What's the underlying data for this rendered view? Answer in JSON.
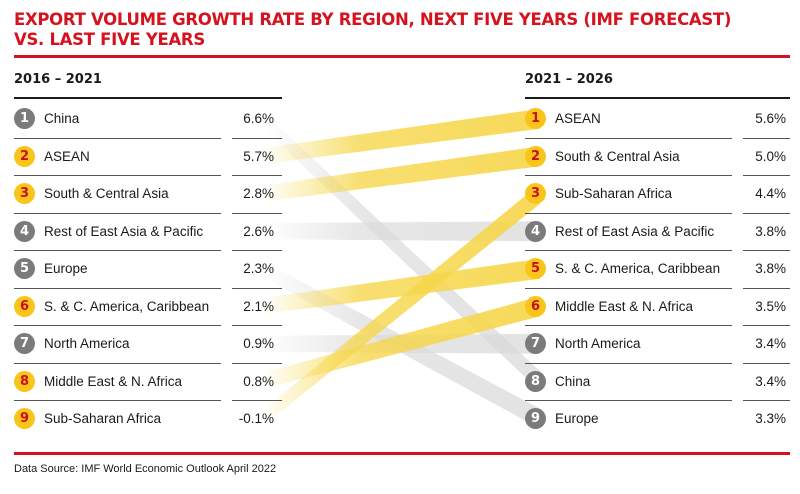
{
  "chart_data": {
    "type": "slope",
    "title": "EXPORT VOLUME GROWTH RATE BY REGION, NEXT FIVE YEARS (IMF FORECAST) VS. LAST FIVE YEARS",
    "left": {
      "period": "2016 – 2021",
      "rows": [
        {
          "rank": 1,
          "region": "China",
          "value": "6.6%",
          "highlight": false
        },
        {
          "rank": 2,
          "region": "ASEAN",
          "value": "5.7%",
          "highlight": true
        },
        {
          "rank": 3,
          "region": "South & Central Asia",
          "value": "2.8%",
          "highlight": true
        },
        {
          "rank": 4,
          "region": "Rest of East Asia & Pacific",
          "value": "2.6%",
          "highlight": false
        },
        {
          "rank": 5,
          "region": "Europe",
          "value": "2.3%",
          "highlight": false
        },
        {
          "rank": 6,
          "region": "S. & C. America, Caribbean",
          "value": "2.1%",
          "highlight": true
        },
        {
          "rank": 7,
          "region": "North America",
          "value": "0.9%",
          "highlight": false
        },
        {
          "rank": 8,
          "region": "Middle East & N. Africa",
          "value": "0.8%",
          "highlight": true
        },
        {
          "rank": 9,
          "region": "Sub-Saharan Africa",
          "value": "-0.1%",
          "highlight": true
        }
      ]
    },
    "right": {
      "period": "2021 – 2026",
      "rows": [
        {
          "rank": 1,
          "region": "ASEAN",
          "value": "5.6%",
          "highlight": true
        },
        {
          "rank": 2,
          "region": "South & Central Asia",
          "value": "5.0%",
          "highlight": true
        },
        {
          "rank": 3,
          "region": "Sub-Saharan Africa",
          "value": "4.4%",
          "highlight": true
        },
        {
          "rank": 4,
          "region": "Rest of East Asia & Pacific",
          "value": "3.8%",
          "highlight": false
        },
        {
          "rank": 5,
          "region": "S. & C. America, Caribbean",
          "value": "3.8%",
          "highlight": true
        },
        {
          "rank": 6,
          "region": "Middle East & N. Africa",
          "value": "3.5%",
          "highlight": true
        },
        {
          "rank": 7,
          "region": "North America",
          "value": "3.4%",
          "highlight": false
        },
        {
          "rank": 8,
          "region": "China",
          "value": "3.4%",
          "highlight": false
        },
        {
          "rank": 9,
          "region": "Europe",
          "value": "3.3%",
          "highlight": false
        }
      ]
    },
    "links": [
      {
        "region": "China",
        "from_rank": 1,
        "to_rank": 8
      },
      {
        "region": "ASEAN",
        "from_rank": 2,
        "to_rank": 1
      },
      {
        "region": "South & Central Asia",
        "from_rank": 3,
        "to_rank": 2
      },
      {
        "region": "Rest of East Asia & Pacific",
        "from_rank": 4,
        "to_rank": 4
      },
      {
        "region": "Europe",
        "from_rank": 5,
        "to_rank": 9
      },
      {
        "region": "S. & C. America, Caribbean",
        "from_rank": 6,
        "to_rank": 5
      },
      {
        "region": "North America",
        "from_rank": 7,
        "to_rank": 7
      },
      {
        "region": "Middle East & N. Africa",
        "from_rank": 8,
        "to_rank": 6
      },
      {
        "region": "Sub-Saharan Africa",
        "from_rank": 9,
        "to_rank": 3
      }
    ],
    "colors": {
      "highlight": "#f9c51b",
      "neutral": "#7b7b7b",
      "accent": "#d6121e",
      "flow_highlight": "#f6d64a",
      "flow_neutral": "#d9d9d9"
    }
  },
  "title_line1": "EXPORT VOLUME GROWTH RATE BY REGION, NEXT FIVE YEARS (IMF FORECAST)",
  "title_line2": "VS. LAST FIVE YEARS",
  "source": "Data Source: IMF World Economic Outlook April 2022"
}
